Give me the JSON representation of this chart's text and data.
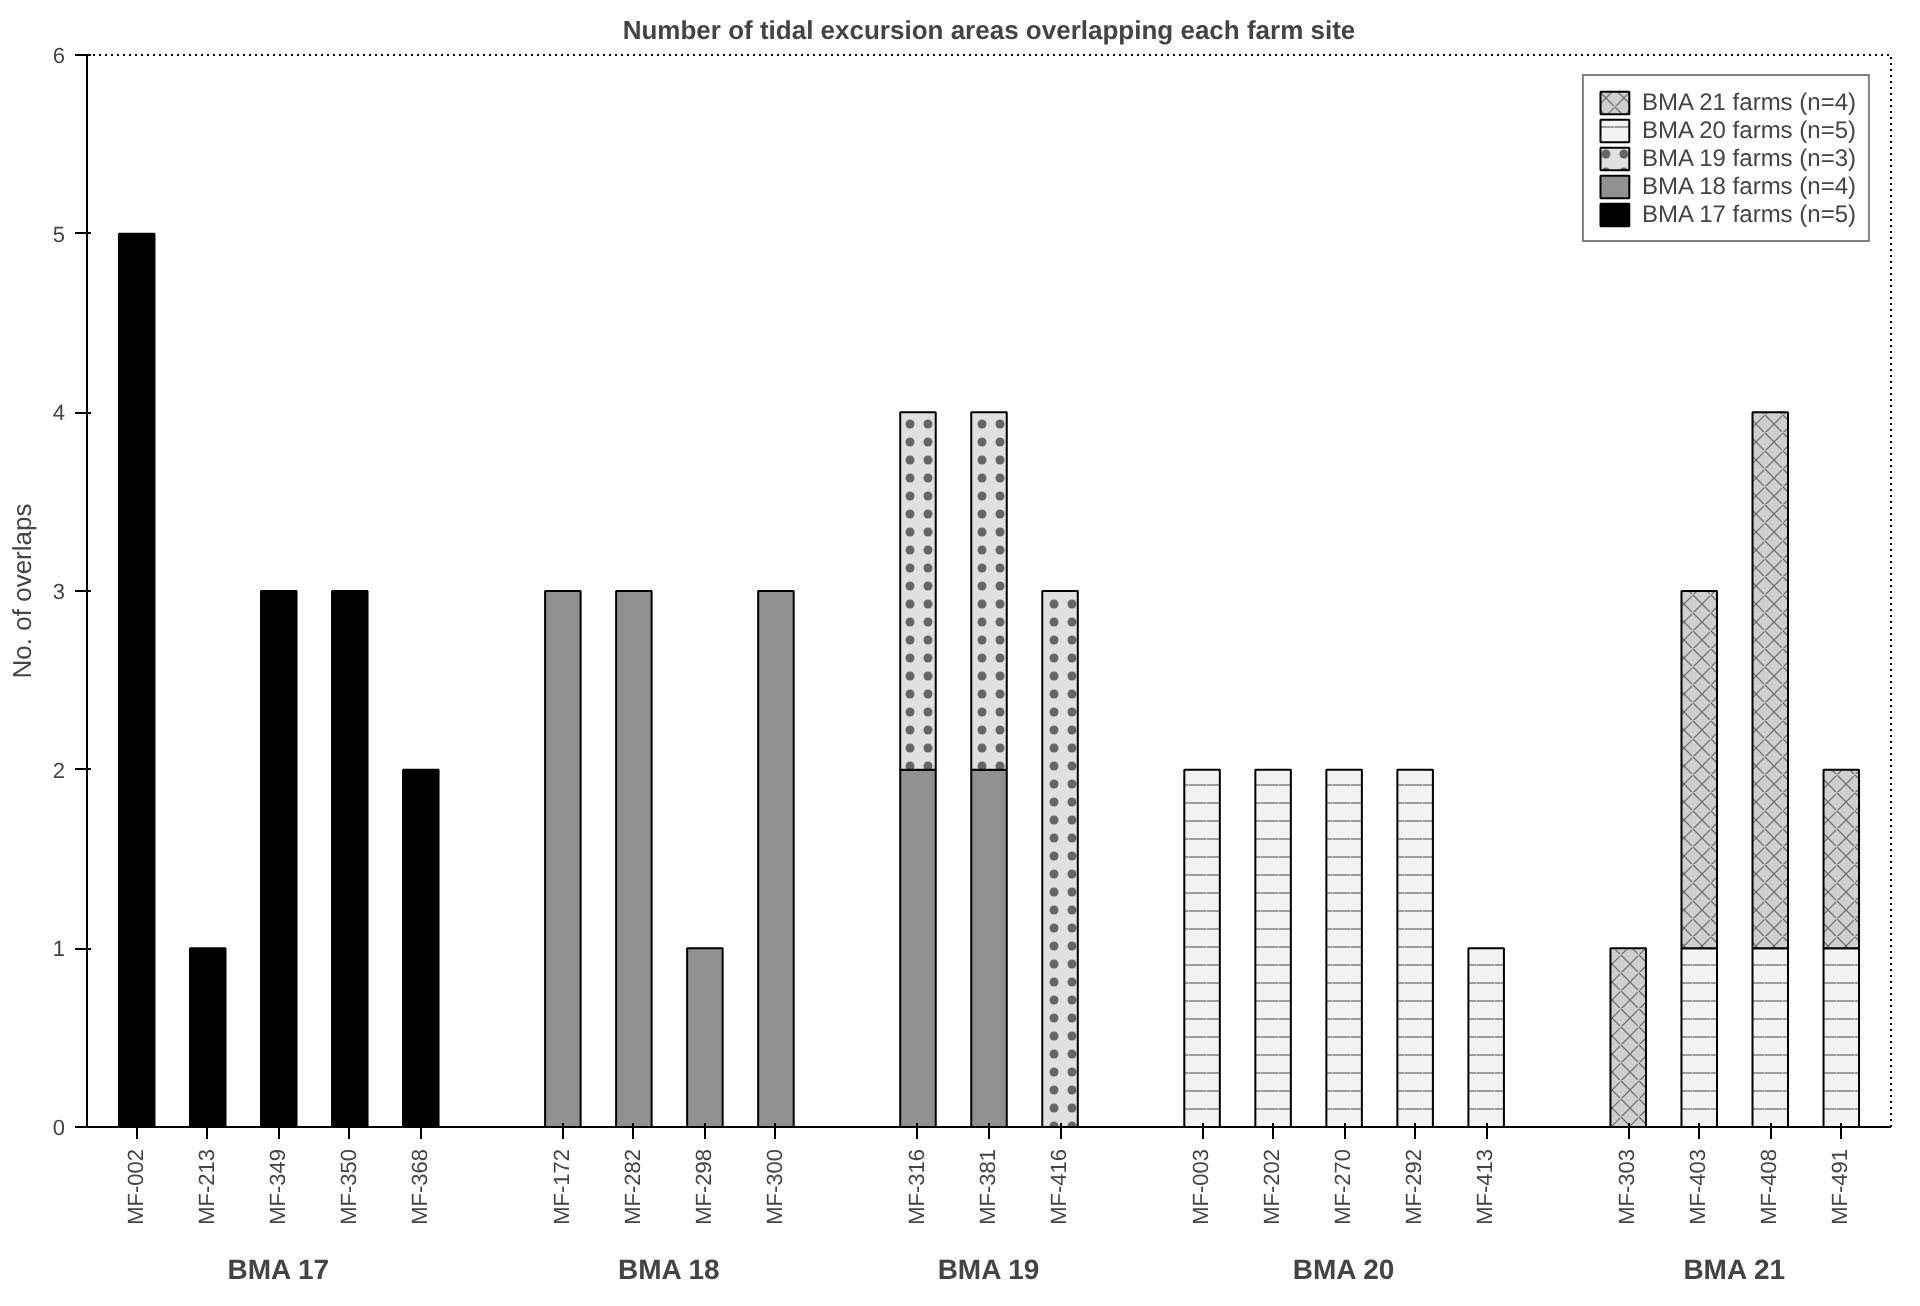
{
  "chart_data": {
    "type": "bar",
    "stacked": true,
    "title": "Number of tidal excursion areas overlapping each farm site",
    "ylabel": "No. of overlaps",
    "categories": [
      "MF-002",
      "MF-213",
      "MF-349",
      "MF-350",
      "MF-368",
      null,
      "MF-172",
      "MF-282",
      "MF-298",
      "MF-300",
      null,
      "MF-316",
      "MF-381",
      "MF-416",
      null,
      "MF-003",
      "MF-202",
      "MF-270",
      "MF-292",
      "MF-413",
      null,
      "MF-303",
      "MF-403",
      "MF-408",
      "MF-491"
    ],
    "annotations": [
      "BMA 17",
      "BMA 18",
      "BMA 19",
      "BMA 20",
      "BMA 21"
    ],
    "series": [
      {
        "name": "BMA 17 farms (n=5)",
        "color": "#000000",
        "values": [
          5,
          1,
          3,
          3,
          2,
          null,
          null,
          null,
          null,
          null,
          null,
          null,
          null,
          null,
          null,
          null,
          null,
          null,
          null,
          null,
          null,
          null,
          null,
          null,
          null
        ]
      },
      {
        "name": "BMA 18 farms (n=4)",
        "color": "#909090",
        "values": [
          null,
          null,
          null,
          null,
          null,
          null,
          3,
          3,
          1,
          3,
          null,
          2,
          2,
          null,
          null,
          null,
          null,
          null,
          null,
          null,
          null,
          null,
          null,
          null,
          null
        ]
      },
      {
        "name": "BMA 19 farms (n=3)",
        "color": "#e0e0e0",
        "values": [
          null,
          null,
          null,
          null,
          null,
          null,
          null,
          null,
          null,
          null,
          null,
          2,
          2,
          3,
          null,
          null,
          null,
          null,
          null,
          null,
          null,
          null,
          null,
          null,
          null
        ]
      },
      {
        "name": "BMA 20 farms (n=5)",
        "color": "#f2f2f2",
        "values": [
          null,
          null,
          null,
          null,
          null,
          null,
          null,
          null,
          null,
          null,
          null,
          null,
          null,
          null,
          null,
          2,
          2,
          2,
          2,
          1,
          null,
          null,
          1,
          1,
          1
        ]
      },
      {
        "name": "BMA 21 farms (n=4)",
        "color": "#cfcfcf",
        "values": [
          null,
          null,
          null,
          null,
          null,
          null,
          null,
          null,
          null,
          null,
          null,
          null,
          null,
          null,
          null,
          null,
          null,
          null,
          null,
          null,
          null,
          1,
          2,
          3,
          1
        ]
      }
    ],
    "ylim": [
      0,
      6
    ],
    "yticks": [
      0,
      1,
      2,
      3,
      4,
      5,
      6
    ],
    "grid": false,
    "legend": "top right"
  }
}
